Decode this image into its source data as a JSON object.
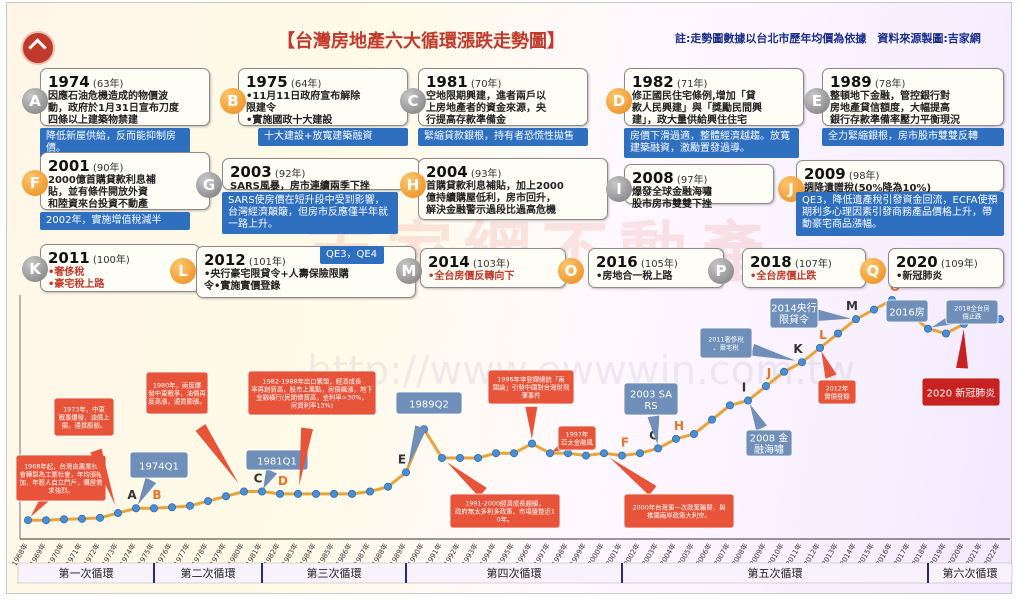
{
  "chart_data": {
    "type": "line",
    "title": "【台灣房地產六大循環漲跌走勢圖】",
    "subtitle": "註:走勢圖數據以台北市歷年均價為依據　資料來源製圖:吉家網",
    "years": [
      1968,
      1969,
      1970,
      1971,
      1972,
      1973,
      1974,
      1975,
      1976,
      1977,
      1978,
      1979,
      1980,
      1981,
      1982,
      1983,
      1984,
      1985,
      1986,
      1987,
      1988,
      1989,
      1990,
      1991,
      1992,
      1993,
      1994,
      1995,
      1996,
      1997,
      1998,
      1999,
      2000,
      2001,
      2002,
      2003,
      2004,
      2005,
      2006,
      2007,
      2008,
      2009,
      2010,
      2011,
      2012,
      2013,
      2014,
      2015,
      2016,
      2017,
      2018,
      2019,
      2020,
      2021,
      2022
    ],
    "x_tick_labels": [
      "1968年",
      "1969年",
      "1970年",
      "1971年",
      "1972年",
      "1973年",
      "1974年",
      "1975年",
      "1976年",
      "1977年",
      "1978年",
      "1979年",
      "1980年",
      "1981年",
      "1982年",
      "1983年",
      "1984年",
      "1985年",
      "1986年",
      "1987年",
      "1988年",
      "1989年",
      "1990年",
      "1991年",
      "1992年",
      "1993年",
      "1994年",
      "1995年",
      "1996年",
      "1997年",
      "1998年",
      "1999年",
      "2000年",
      "2001年",
      "2002年",
      "2003年",
      "2004年",
      "2005年",
      "2006年",
      "2007年",
      "2008年",
      "2009年",
      "2010年",
      "2011年",
      "2012年",
      "2013年",
      "2014年",
      "2015年",
      "2016年",
      "2017年",
      "2018年",
      "2019年",
      "2020年",
      "2021年",
      "2022年"
    ],
    "values": [
      1,
      1,
      1.2,
      1.3,
      1.5,
      2.5,
      3.5,
      3.5,
      3.7,
      4,
      5,
      6,
      7,
      7,
      6.5,
      6.5,
      6.5,
      6.5,
      6.5,
      7,
      8,
      11,
      20,
      14,
      14,
      14,
      15,
      15,
      17,
      15,
      15,
      14.5,
      15,
      14.5,
      15,
      16,
      18,
      19,
      22,
      25,
      26,
      29,
      32,
      34,
      37,
      40,
      43,
      45,
      47,
      44,
      41,
      40,
      42,
      43,
      43
    ],
    "cycles": [
      "第一次循環",
      "第二次循環",
      "第三次循環",
      "第四次循環",
      "第五次循環",
      "第六次循環"
    ],
    "point_letters": [
      {
        "letter": "A",
        "year": 1974
      },
      {
        "letter": "B",
        "year": 1975
      },
      {
        "letter": "C",
        "year": 1981
      },
      {
        "letter": "D",
        "year": 1982
      },
      {
        "letter": "E",
        "year": 1989
      },
      {
        "letter": "F",
        "year": 2001
      },
      {
        "letter": "G",
        "year": 2003
      },
      {
        "letter": "H",
        "year": 2004
      },
      {
        "letter": "I",
        "year": 2008
      },
      {
        "letter": "J",
        "year": 2009
      },
      {
        "letter": "K",
        "year": 2011
      },
      {
        "letter": "L",
        "year": 2012
      },
      {
        "letter": "M",
        "year": 2014
      },
      {
        "letter": "O",
        "year": 2016
      },
      {
        "letter": "P",
        "year": 2018
      },
      {
        "letter": "Q",
        "year": 2020
      }
    ],
    "callouts": [
      {
        "text": "1968年起，台灣由農業社會轉型為工業社會，年均漲幅加，年輕人自立門戶，購屋需求強烈。",
        "color": "#e8543a"
      },
      {
        "text": "1973年，中東戰事爆發，油價上揚，通貨膨脹。",
        "color": "#e8543a"
      },
      {
        "text": "1974Q1",
        "color": "#6f8fb8"
      },
      {
        "text": "1980年，兩度爆發中東戰爭，油價再度高漲，通貨膨脹。",
        "color": "#e8543a"
      },
      {
        "text": "1981Q1",
        "color": "#6f8fb8"
      },
      {
        "text": "1982-1988年出口繁榮，經濟成長率再創新高，股市上萬點，房價飆漲，地下金融橫行(民間借貸高，金利率>30%，房貸利率13%)",
        "color": "#e8543a"
      },
      {
        "text": "1989Q2",
        "color": "#6f8fb8"
      },
      {
        "text": "1996年李登輝總統「兩國論」引發中國對台灣射飛彈事件",
        "color": "#e8543a"
      },
      {
        "text": "1997年亞太金融風暴",
        "color": "#e8543a"
      },
      {
        "text": "1991-2000經濟成長趨緩，政府無太多利多政策，市場盤整近10年。",
        "color": "#e8543a"
      },
      {
        "text": "2003 SARS",
        "color": "#6f8fb8"
      },
      {
        "text": "2000年台灣第一次政黨輪替，與推國兩岸政策大利空。",
        "color": "#e8543a"
      },
      {
        "text": "2008 金融海嘯",
        "color": "#6f8fb8"
      },
      {
        "text": "2011奢侈稅、豪宅稅",
        "color": "#6f8fb8"
      },
      {
        "text": "2012年實價登錄",
        "color": "#e8543a"
      },
      {
        "text": "2014央行限貸令",
        "color": "#6f8fb8"
      },
      {
        "text": "2016房地合一",
        "color": "#6f8fb8"
      },
      {
        "text": "2018全台房價止跌",
        "color": "#6f8fb8"
      },
      {
        "text": "2020 新冠肺炎",
        "color": "#c72121"
      }
    ],
    "events": [
      {
        "letter": "A",
        "tone": "grey",
        "year": "1974",
        "age": "(63年)",
        "lines": [
          "因應石油危機造成的物價波",
          "動，政府於1月31日宣布刀度",
          "四條以上建築物禁建"
        ],
        "note": "降低新屋供給，反而能抑制房價。"
      },
      {
        "letter": "B",
        "tone": "orange",
        "year": "1975",
        "age": "(64年)",
        "lines": [
          "•11月11日政府宣布解除",
          "限建令",
          "•實施國政十大建設"
        ],
        "note": "十大建設+放寬建築融資"
      },
      {
        "letter": "C",
        "tone": "grey",
        "year": "1981",
        "age": "(70年)",
        "lines": [
          "空地限期興建，進者兩戶以",
          "上房地產者的資金來源，央",
          "行提高存款準備金"
        ],
        "note": "緊縮貸款銀根，持有者恐慌性拋售"
      },
      {
        "letter": "D",
        "tone": "orange",
        "year": "1982",
        "age": "(71年)",
        "lines": [
          "修正國民住宅條例,增加「貸",
          "款人民興建」與「獎勵民間興",
          "建」，政大量供給興住住宅"
        ],
        "note": "房價下滑過適，整體經濟越趨。放寬建築融資，激勵置發過導。"
      },
      {
        "letter": "E",
        "tone": "grey",
        "year": "1989",
        "age": "(78年)",
        "lines": [
          "整頓地下金融，管控銀行對",
          "房地產貸信額度，大幅提高",
          "銀行存款準備率壓力平衡現況"
        ],
        "note": "全力緊縮銀根，房市股市雙雙反轉"
      },
      {
        "letter": "F",
        "tone": "orange",
        "year": "2001",
        "age": "(90年)",
        "lines": [
          "2000億首購貸款利息補",
          "貼，並有條件開放外資",
          "和陸資來台投資不動產"
        ],
        "note": "2002年，實施增值稅減半"
      },
      {
        "letter": "G",
        "tone": "grey",
        "year": "2003",
        "age": "(92年)",
        "lines": [
          "SARS風暴，房市連續兩季下挫"
        ],
        "note": "SARS使房價在短升段中受到影響，台灣經濟顛簸，但房市反應僅半年就一路上升。"
      },
      {
        "letter": "H",
        "tone": "orange",
        "year": "2004",
        "age": "(93年)",
        "lines": [
          "首購貸款利息補貼，加上2000",
          "億持續購屋低利，房市回升，",
          "解決金融警示過段比過高危機"
        ],
        "note": ""
      },
      {
        "letter": "I",
        "tone": "grey",
        "year": "2008",
        "age": "(97年)",
        "lines": [
          "爆發全球金融海嘯",
          "股市房市雙雙下挫"
        ],
        "note": ""
      },
      {
        "letter": "J",
        "tone": "orange",
        "year": "2009",
        "age": "(98年)",
        "lines": [
          "調降遺贈稅(50%降為10%)"
        ],
        "note": "QE3，降低遺產稅引發資金回流，ECFA使預期利多心理因素引發商務產品價格上升，帶動豪宅商品漲幅。"
      },
      {
        "letter": "K",
        "tone": "grey",
        "year": "2011",
        "age": "(100年)",
        "lines": [
          "•奢侈稅",
          "•豪宅稅上路"
        ],
        "note": ""
      },
      {
        "letter": "L",
        "tone": "orange",
        "year": "2012",
        "age": "(101年)",
        "lines": [
          "•央行豪宅限貸令+人壽保險限購",
          "令•實施實價登錄"
        ],
        "note": "QE3，QE4"
      },
      {
        "letter": "M",
        "tone": "grey",
        "year": "2014",
        "age": "(103年)",
        "lines": [
          "•全台房價反轉向下"
        ],
        "note": ""
      },
      {
        "letter": "O",
        "tone": "orange",
        "year": "2016",
        "age": "(105年)",
        "lines": [
          "•房地合一稅上路"
        ],
        "note": ""
      },
      {
        "letter": "P",
        "tone": "grey",
        "year": "2018",
        "age": "(107年)",
        "lines": [
          "•全台房價止跌"
        ],
        "note": ""
      },
      {
        "letter": "Q",
        "tone": "orange",
        "year": "2020",
        "age": "(109年)",
        "lines": [
          "•新冠肺炎"
        ],
        "note": ""
      }
    ],
    "grid": false,
    "legend": "none"
  }
}
